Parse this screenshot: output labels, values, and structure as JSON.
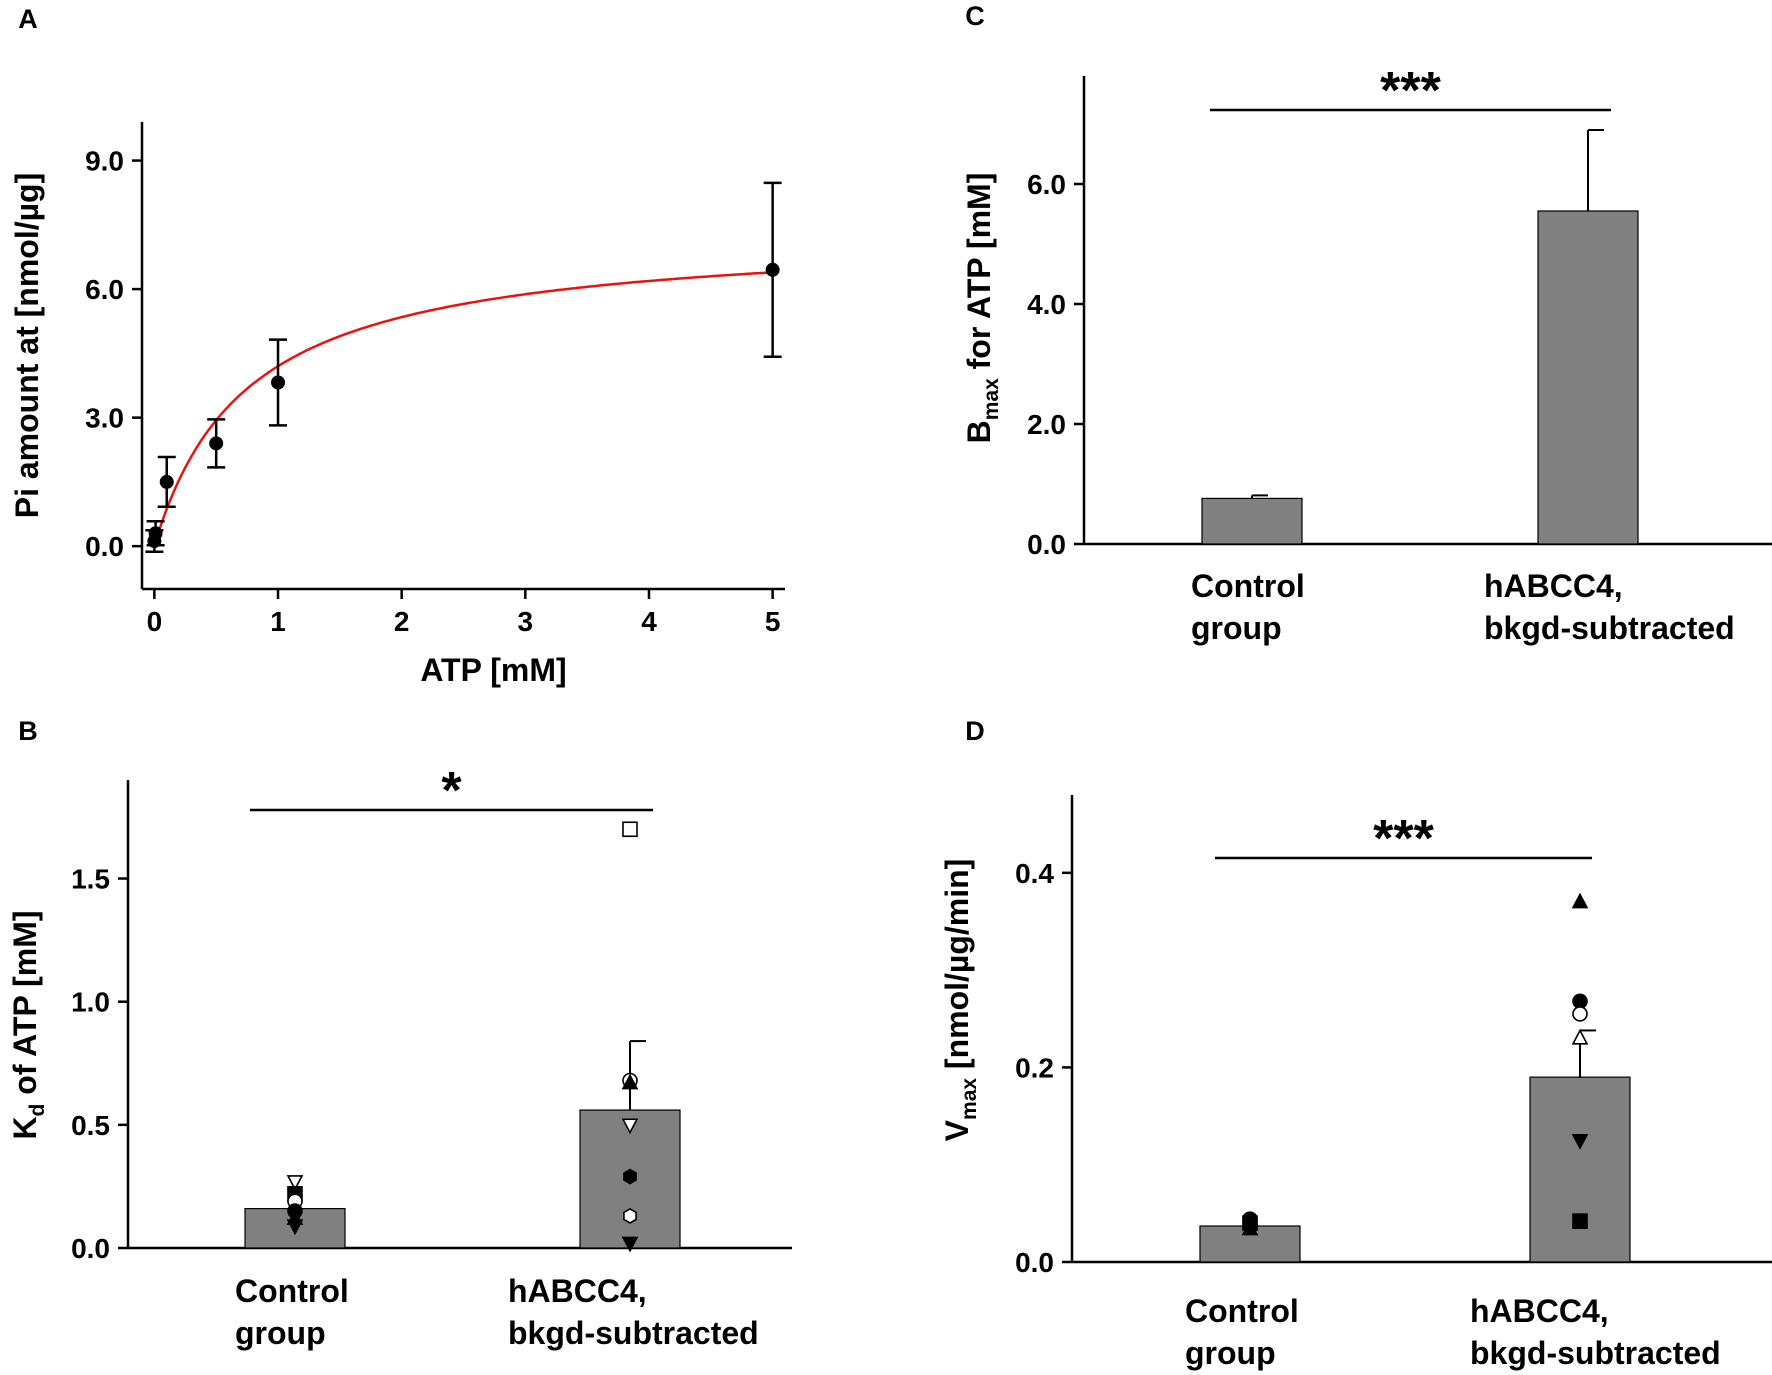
{
  "colors": {
    "bar": "#808080",
    "curve": "#e8130f",
    "axis": "#000000"
  },
  "chart_data": [
    {
      "panel": "A",
      "type": "scatter",
      "xlabel": "ATP [mM]",
      "ylabel": "Pi amount at [nmol/µg]",
      "xlim": [
        -0.1,
        5.1
      ],
      "ylim": [
        -1.0,
        9.9
      ],
      "xticks": [
        0,
        1,
        2,
        3,
        4,
        5
      ],
      "xtick_labels": [
        "0",
        "1",
        "2",
        "3",
        "4",
        "5"
      ],
      "yticks": [
        0,
        3,
        6,
        9
      ],
      "ytick_labels": [
        "0.0",
        "3.0",
        "6.0",
        "9.0"
      ],
      "points": [
        {
          "x": 0.0,
          "y": 0.12,
          "err": 0.25
        },
        {
          "x": 0.01,
          "y": 0.3,
          "err": 0.28
        },
        {
          "x": 0.1,
          "y": 1.5,
          "err": 0.58
        },
        {
          "x": 0.5,
          "y": 2.4,
          "err": 0.56
        },
        {
          "x": 1.0,
          "y": 3.82,
          "err": 1.0
        },
        {
          "x": 5.0,
          "y": 6.45,
          "err": 2.03
        }
      ],
      "fit": {
        "type": "hyperbola",
        "bmax": 7.35,
        "kd": 0.75
      }
    },
    {
      "panel": "B",
      "type": "bar",
      "categories": [
        [
          "Control",
          "group"
        ],
        [
          "hABCC4,",
          "bkgd-subtracted"
        ]
      ],
      "values": [
        0.16,
        0.56
      ],
      "errors": [
        0.0,
        0.28
      ],
      "ylabel_main": "K",
      "ylabel_sub": "d",
      "ylabel_rest": " of ATP [mM]",
      "ylim": [
        0,
        1.9
      ],
      "yticks": [
        0,
        0.5,
        1.0,
        1.5
      ],
      "ytick_labels": [
        "0.0",
        "0.5",
        "1.0",
        "1.5"
      ],
      "significance": "*",
      "scatter": [
        {
          "cat": 0,
          "y": 0.27,
          "marker": "tri-down-open"
        },
        {
          "cat": 0,
          "y": 0.22,
          "marker": "square"
        },
        {
          "cat": 0,
          "y": 0.19,
          "marker": "circle-open"
        },
        {
          "cat": 0,
          "y": 0.15,
          "marker": "circle"
        },
        {
          "cat": 0,
          "y": 0.12,
          "marker": "tri-up"
        },
        {
          "cat": 0,
          "y": 0.09,
          "marker": "tri-down"
        },
        {
          "cat": 1,
          "y": 1.7,
          "marker": "square-open"
        },
        {
          "cat": 1,
          "y": 0.68,
          "marker": "circle-open"
        },
        {
          "cat": 1,
          "y": 0.67,
          "marker": "tri-up"
        },
        {
          "cat": 1,
          "y": 0.5,
          "marker": "tri-down-open"
        },
        {
          "cat": 1,
          "y": 0.29,
          "marker": "hexagon"
        },
        {
          "cat": 1,
          "y": 0.13,
          "marker": "hexagon-open"
        },
        {
          "cat": 1,
          "y": 0.02,
          "marker": "tri-down"
        }
      ]
    },
    {
      "panel": "C",
      "type": "bar",
      "categories": [
        [
          "Control",
          "group"
        ],
        [
          "hABCC4,",
          "bkgd-subtracted"
        ]
      ],
      "values": [
        0.76,
        5.55
      ],
      "errors": [
        0.05,
        1.35
      ],
      "ylabel_main": "B",
      "ylabel_sub": "max",
      "ylabel_rest": " for ATP [mM]",
      "ylim": [
        0,
        7.8
      ],
      "yticks": [
        0,
        2,
        4,
        6
      ],
      "ytick_labels": [
        "0.0",
        "2.0",
        "4.0",
        "6.0"
      ],
      "significance": "***",
      "scatter": []
    },
    {
      "panel": "D",
      "type": "bar",
      "categories": [
        [
          "Control",
          "group"
        ],
        [
          "hABCC4,",
          "bkgd-subtracted"
        ]
      ],
      "values": [
        0.037,
        0.19
      ],
      "errors": [
        0.0,
        0.048
      ],
      "ylabel_main": "V",
      "ylabel_sub": "max",
      "ylabel_rest": " [nmol/µg/min]",
      "ylim": [
        0,
        0.48
      ],
      "yticks": [
        0,
        0.2,
        0.4
      ],
      "ytick_labels": [
        "0.0",
        "0.2",
        "0.4"
      ],
      "significance": "***",
      "scatter": [
        {
          "cat": 0,
          "y": 0.044,
          "marker": "circle"
        },
        {
          "cat": 0,
          "y": 0.04,
          "marker": "square"
        },
        {
          "cat": 0,
          "y": 0.034,
          "marker": "tri-up"
        },
        {
          "cat": 1,
          "y": 0.37,
          "marker": "tri-up"
        },
        {
          "cat": 1,
          "y": 0.268,
          "marker": "circle"
        },
        {
          "cat": 1,
          "y": 0.255,
          "marker": "circle-open"
        },
        {
          "cat": 1,
          "y": 0.23,
          "marker": "tri-up-open"
        },
        {
          "cat": 1,
          "y": 0.125,
          "marker": "tri-down"
        },
        {
          "cat": 1,
          "y": 0.042,
          "marker": "square"
        }
      ]
    }
  ]
}
